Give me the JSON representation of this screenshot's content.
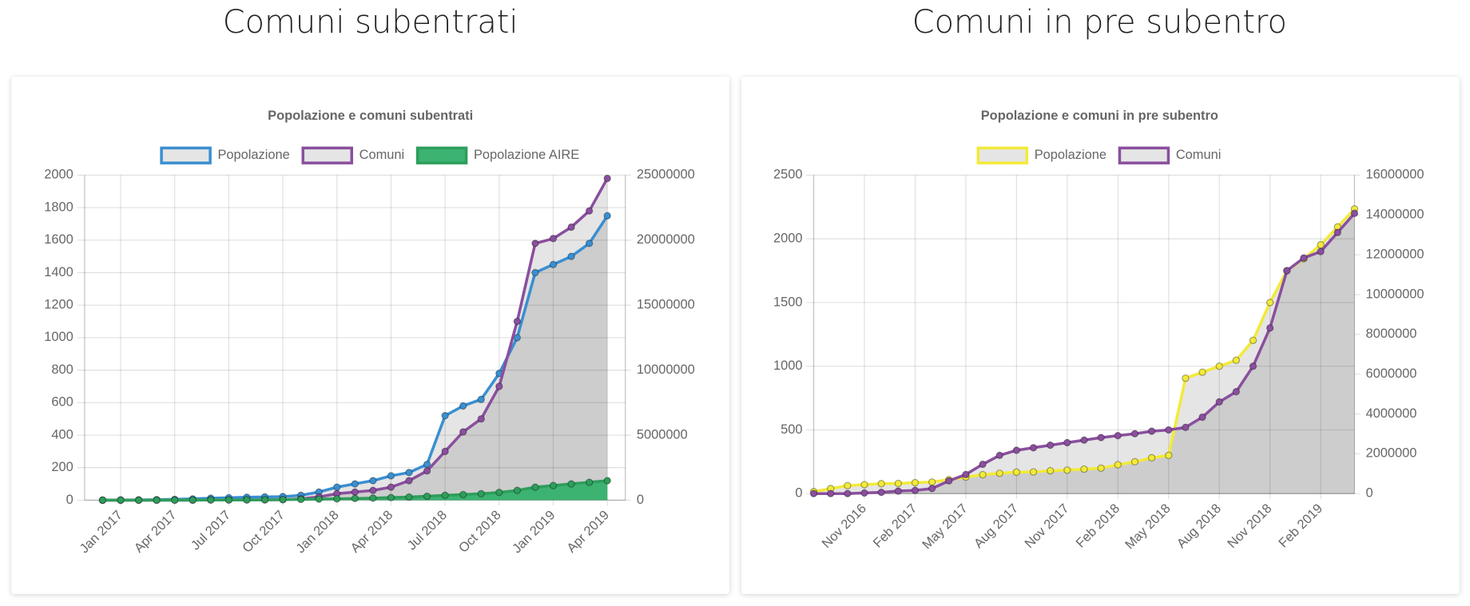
{
  "headings": [
    "Comuni subentrati",
    "Comuni in pre subentro"
  ],
  "chart_data": [
    {
      "type": "line",
      "title": "Popolazione e comuni subentrati",
      "x": [
        "2016-12",
        "2017-01",
        "2017-02",
        "2017-03",
        "2017-04",
        "2017-05",
        "2017-06",
        "2017-07",
        "2017-08",
        "2017-09",
        "2017-10",
        "2017-11",
        "2017-12",
        "2018-01",
        "2018-02",
        "2018-03",
        "2018-04",
        "2018-05",
        "2018-06",
        "2018-07",
        "2018-08",
        "2018-09",
        "2018-10",
        "2018-11",
        "2018-12",
        "2019-01",
        "2019-02",
        "2019-03",
        "2019-04"
      ],
      "series": [
        {
          "name": "Popolazione",
          "color": "#3a8fd1",
          "fill": "rgba(0,0,0,0.1)",
          "axis": "y2",
          "values": [
            0,
            12500,
            25000,
            37500,
            62500,
            100000,
            150000,
            187500,
            225000,
            250000,
            275000,
            375000,
            625000,
            1000000,
            1250000,
            1500000,
            1875000,
            2125000,
            2750000,
            6500000,
            7250000,
            7750000,
            9750000,
            12500000,
            17500000,
            18125000,
            18750000,
            19750000,
            21875000
          ]
        },
        {
          "name": "Comuni",
          "color": "#8a4f9e",
          "fill": "rgba(0,0,0,0.1)",
          "values": [
            0,
            0,
            0,
            0,
            0,
            0,
            1,
            1,
            2,
            2,
            3,
            8,
            20,
            40,
            50,
            60,
            80,
            120,
            180,
            300,
            420,
            500,
            700,
            1100,
            1580,
            1610,
            1680,
            1780,
            1980
          ]
        },
        {
          "name": "Popolazione AIRE",
          "color": "#2e9e5b",
          "fill": "#3cb371",
          "axis": "y2",
          "values": [
            0,
            0,
            0,
            0,
            5000,
            10000,
            15000,
            20000,
            25000,
            30000,
            40000,
            60000,
            80000,
            100000,
            130000,
            160000,
            200000,
            240000,
            300000,
            375000,
            430000,
            500000,
            600000,
            750000,
            1000000,
            1125000,
            1250000,
            1375000,
            1500000
          ]
        }
      ],
      "xlim": [
        "2016-11",
        "2019-05"
      ],
      "xticks": [
        {
          "value": "2017-01",
          "label": "Jan 2017"
        },
        {
          "value": "2017-04",
          "label": "Apr 2017"
        },
        {
          "value": "2017-07",
          "label": "Jul 2017"
        },
        {
          "value": "2017-10",
          "label": "Oct 2017"
        },
        {
          "value": "2018-01",
          "label": "Jan 2018"
        },
        {
          "value": "2018-04",
          "label": "Apr 2018"
        },
        {
          "value": "2018-07",
          "label": "Jul 2018"
        },
        {
          "value": "2018-10",
          "label": "Oct 2018"
        },
        {
          "value": "2019-01",
          "label": "Jan 2019"
        },
        {
          "value": "2019-04",
          "label": "Apr 2019"
        }
      ],
      "ylim": [
        0,
        2000
      ],
      "yticks": [
        0,
        200,
        400,
        600,
        800,
        1000,
        1200,
        1400,
        1600,
        1800,
        2000
      ],
      "y2lim": [
        0,
        25000000
      ],
      "y2ticks": [
        0,
        5000000,
        10000000,
        15000000,
        20000000,
        25000000
      ],
      "grid": true,
      "legend": "top"
    },
    {
      "type": "line",
      "title": "Popolazione e comuni in pre subentro",
      "x": [
        "2016-08",
        "2016-09",
        "2016-10",
        "2016-11",
        "2016-12",
        "2017-01",
        "2017-02",
        "2017-03",
        "2017-04",
        "2017-05",
        "2017-06",
        "2017-07",
        "2017-08",
        "2017-09",
        "2017-10",
        "2017-11",
        "2017-12",
        "2018-01",
        "2018-02",
        "2018-03",
        "2018-04",
        "2018-05",
        "2018-06",
        "2018-07",
        "2018-08",
        "2018-09",
        "2018-10",
        "2018-11",
        "2018-12",
        "2019-01",
        "2019-02",
        "2019-03",
        "2019-04"
      ],
      "series": [
        {
          "name": "Popolazione",
          "color": "#f2ea3a",
          "fill": "rgba(0,0,0,0.1)",
          "axis": "y2",
          "values": [
            100000,
            250000,
            400000,
            450000,
            500000,
            510000,
            550000,
            580000,
            700000,
            830000,
            950000,
            1020000,
            1080000,
            1090000,
            1150000,
            1180000,
            1230000,
            1280000,
            1450000,
            1600000,
            1800000,
            1920000,
            5800000,
            6100000,
            6400000,
            6700000,
            7700000,
            9600000,
            11200000,
            11800000,
            12500000,
            13400000,
            14300000
          ]
        },
        {
          "name": "Comuni",
          "color": "#8a4f9e",
          "fill": "rgba(0,0,0,0.1)",
          "values": [
            0,
            0,
            0,
            5,
            10,
            20,
            25,
            40,
            100,
            150,
            230,
            300,
            340,
            360,
            380,
            400,
            420,
            440,
            455,
            470,
            490,
            500,
            520,
            600,
            720,
            800,
            1000,
            1300,
            1750,
            1850,
            1900,
            2050,
            2200
          ]
        }
      ],
      "xlim": [
        "2016-08",
        "2019-04"
      ],
      "xticks": [
        {
          "value": "2016-11",
          "label": "Nov 2016"
        },
        {
          "value": "2017-02",
          "label": "Feb 2017"
        },
        {
          "value": "2017-05",
          "label": "May 2017"
        },
        {
          "value": "2017-08",
          "label": "Aug 2017"
        },
        {
          "value": "2017-11",
          "label": "Nov 2017"
        },
        {
          "value": "2018-02",
          "label": "Feb 2018"
        },
        {
          "value": "2018-05",
          "label": "May 2018"
        },
        {
          "value": "2018-08",
          "label": "Aug 2018"
        },
        {
          "value": "2018-11",
          "label": "Nov 2018"
        },
        {
          "value": "2019-02",
          "label": "Feb 2019"
        }
      ],
      "ylim": [
        0,
        2500
      ],
      "yticks": [
        0,
        500,
        1000,
        1500,
        2000,
        2500
      ],
      "y2lim": [
        0,
        16000000
      ],
      "y2ticks": [
        0,
        2000000,
        4000000,
        6000000,
        8000000,
        10000000,
        12000000,
        14000000,
        16000000
      ],
      "grid": true,
      "legend": "top"
    }
  ]
}
